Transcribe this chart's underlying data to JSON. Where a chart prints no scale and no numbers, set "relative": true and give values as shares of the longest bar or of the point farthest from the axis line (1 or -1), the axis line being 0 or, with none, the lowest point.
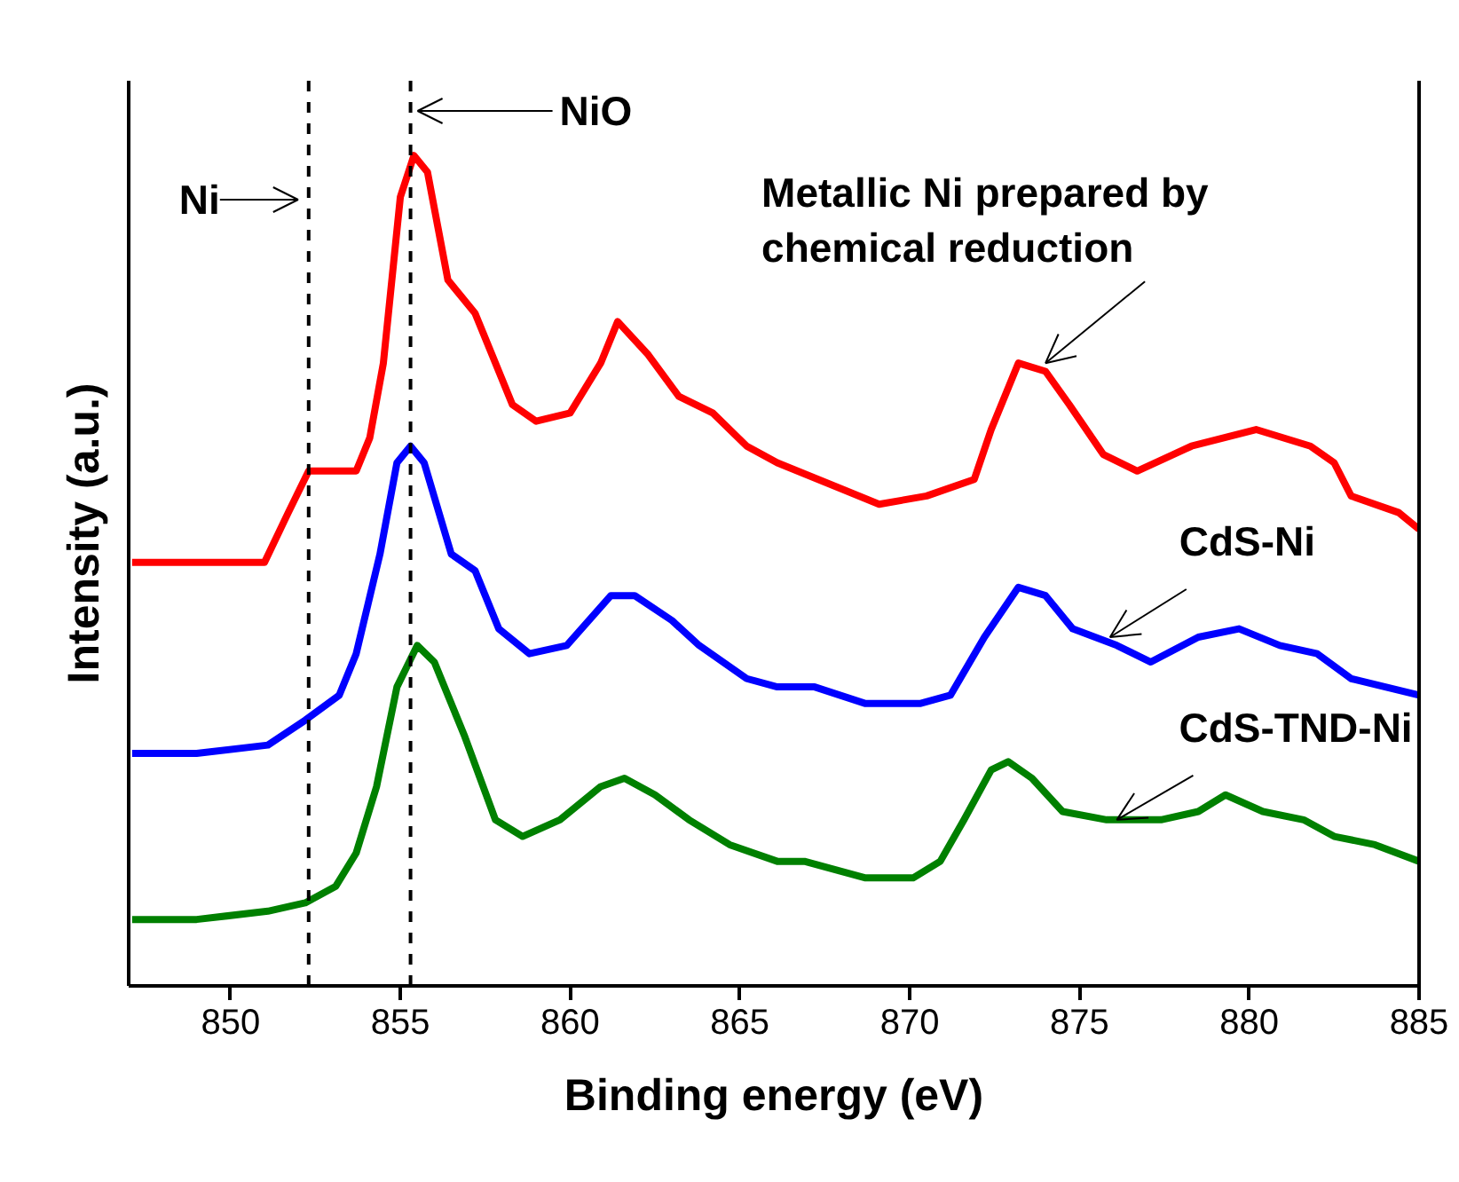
{
  "chart_data": {
    "type": "line",
    "relative": true,
    "xlabel": "Binding energy (eV)",
    "ylabel": "Intensity (a.u.)",
    "xlim": [
      847,
      885
    ],
    "xticks": [
      850,
      855,
      860,
      865,
      870,
      875,
      880,
      885
    ],
    "grid": false,
    "series": [
      {
        "color": "#ff0000",
        "x": [
          847.1,
          849.0,
          851.0,
          851.7,
          852.3,
          853.7,
          854.1,
          854.5,
          855.0,
          855.4,
          855.8,
          856.4,
          857.2,
          857.7,
          858.3,
          859.0,
          860.0,
          860.9,
          861.4,
          862.3,
          863.2,
          864.2,
          865.2,
          866.1,
          867.9,
          869.1,
          870.5,
          871.9,
          872.4,
          873.2,
          874.0,
          874.7,
          875.7,
          876.7,
          878.3,
          880.2,
          881.8,
          882.5,
          883.0,
          884.4,
          885.0
        ],
        "values": [
          0.51,
          0.51,
          0.51,
          0.57,
          0.62,
          0.62,
          0.66,
          0.75,
          0.95,
          1.0,
          0.98,
          0.85,
          0.81,
          0.76,
          0.7,
          0.68,
          0.69,
          0.75,
          0.8,
          0.76,
          0.71,
          0.69,
          0.65,
          0.63,
          0.6,
          0.58,
          0.59,
          0.61,
          0.67,
          0.75,
          0.74,
          0.7,
          0.64,
          0.62,
          0.65,
          0.67,
          0.65,
          0.63,
          0.59,
          0.57,
          0.55
        ]
      },
      {
        "color": "#0000ff",
        "x": [
          847.1,
          849.0,
          851.1,
          852.2,
          853.2,
          853.7,
          854.4,
          854.9,
          855.3,
          855.7,
          856.5,
          857.2,
          857.9,
          858.8,
          859.9,
          861.2,
          861.9,
          863.0,
          863.8,
          865.2,
          866.1,
          867.2,
          868.7,
          870.3,
          871.2,
          872.2,
          873.2,
          874.0,
          874.8,
          876.1,
          877.1,
          878.5,
          879.7,
          880.9,
          882.0,
          883.0,
          885.0
        ],
        "values": [
          0.28,
          0.28,
          0.29,
          0.32,
          0.35,
          0.4,
          0.52,
          0.63,
          0.65,
          0.63,
          0.52,
          0.5,
          0.43,
          0.4,
          0.41,
          0.47,
          0.47,
          0.44,
          0.41,
          0.37,
          0.36,
          0.36,
          0.34,
          0.34,
          0.35,
          0.42,
          0.48,
          0.47,
          0.43,
          0.41,
          0.39,
          0.42,
          0.43,
          0.41,
          0.4,
          0.37,
          0.35
        ]
      },
      {
        "color": "#008000",
        "x": [
          847.1,
          849.0,
          851.1,
          852.2,
          853.1,
          853.7,
          854.3,
          854.9,
          855.5,
          856.0,
          856.9,
          857.8,
          858.6,
          859.7,
          860.9,
          861.6,
          862.5,
          863.5,
          864.7,
          866.1,
          866.9,
          868.7,
          870.1,
          870.9,
          871.6,
          872.4,
          872.9,
          873.6,
          874.5,
          875.8,
          877.4,
          878.5,
          879.3,
          880.4,
          881.6,
          882.5,
          883.7,
          885.0
        ],
        "values": [
          0.08,
          0.08,
          0.09,
          0.1,
          0.12,
          0.16,
          0.24,
          0.36,
          0.41,
          0.39,
          0.3,
          0.2,
          0.18,
          0.2,
          0.24,
          0.25,
          0.23,
          0.2,
          0.17,
          0.15,
          0.15,
          0.13,
          0.13,
          0.15,
          0.2,
          0.26,
          0.27,
          0.25,
          0.21,
          0.2,
          0.2,
          0.21,
          0.23,
          0.21,
          0.2,
          0.18,
          0.17,
          0.15
        ]
      }
    ],
    "ref_lines": [
      {
        "axis": "x",
        "value": 852.3,
        "label": "Ni",
        "line_style": "dashed",
        "color": "#000000"
      },
      {
        "axis": "x",
        "value": 855.3,
        "label": "NiO",
        "line_style": "dashed",
        "color": "#000000"
      }
    ],
    "annotations": [
      {
        "text": "Metallic Ni prepared by\nchemical reduction",
        "x": 874.0,
        "y": 0.75
      },
      {
        "text": "CdS-Ni",
        "x": 875.9,
        "y": 0.42
      },
      {
        "text": "CdS-TND-Ni",
        "x": 876.1,
        "y": 0.2
      }
    ]
  }
}
